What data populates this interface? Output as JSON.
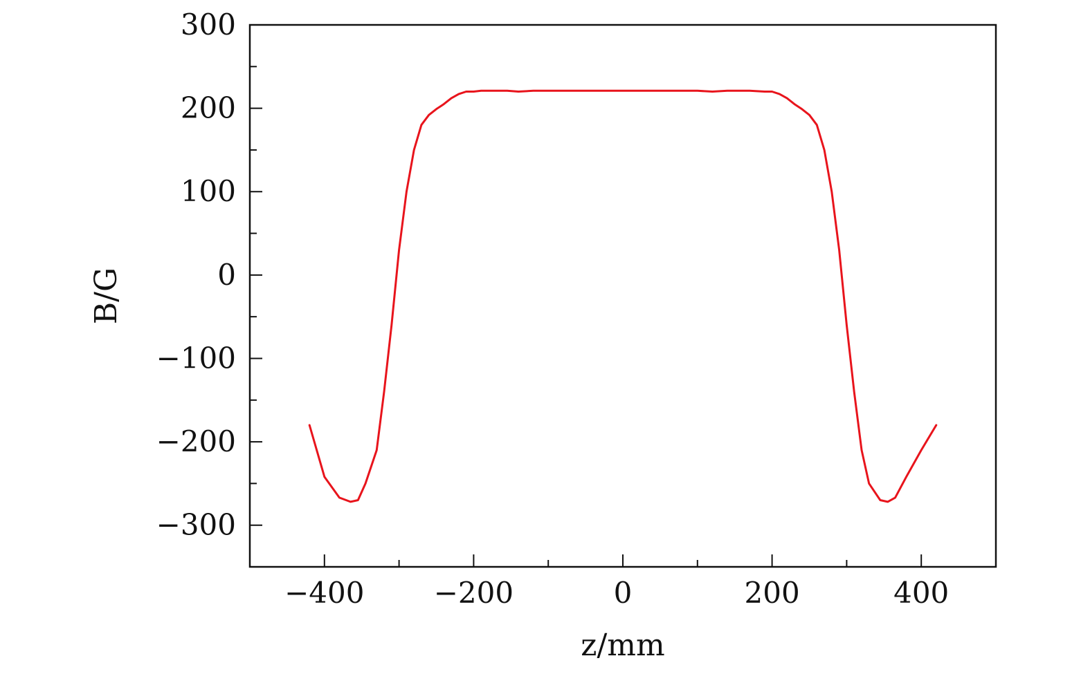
{
  "chart_data": {
    "type": "line",
    "title": "",
    "xlabel": "z/mm",
    "ylabel": "B/G",
    "xlim": [
      -500,
      500
    ],
    "ylim": [
      -350,
      300
    ],
    "x_ticks": [
      -400,
      -200,
      0,
      200,
      400
    ],
    "x_tick_labels": [
      "−400",
      "−200",
      "0",
      "200",
      "400"
    ],
    "x_minor_ticks": [
      -300,
      -100,
      100,
      300
    ],
    "y_ticks": [
      300,
      200,
      100,
      0,
      -100,
      -200,
      -300
    ],
    "y_tick_labels": [
      "300",
      "200",
      "100",
      "0",
      "−100",
      "−200",
      "−300"
    ],
    "y_minor_ticks": [
      250,
      150,
      50,
      -50,
      -150,
      -250
    ],
    "grid": false,
    "line_color": "#e8141c",
    "series": [
      {
        "x": [
          -420,
          -400,
          -380,
          -365,
          -355,
          -345,
          -330,
          -320,
          -310,
          -300,
          -290,
          -280,
          -270,
          -260,
          -250,
          -240,
          -230,
          -220,
          -210,
          -200,
          -190,
          -170,
          -155,
          -140,
          -120,
          -100,
          -50,
          0,
          50,
          100,
          120,
          140,
          155,
          170,
          190,
          200,
          210,
          220,
          230,
          240,
          250,
          260,
          270,
          280,
          290,
          300,
          310,
          320,
          330,
          345,
          355,
          365,
          380,
          400,
          420
        ],
        "y": [
          -180,
          -242,
          -267,
          -272,
          -270,
          -250,
          -210,
          -140,
          -60,
          30,
          100,
          150,
          180,
          192,
          199,
          205,
          212,
          217,
          220,
          220,
          221,
          221,
          221,
          220,
          221,
          221,
          221,
          221,
          221,
          221,
          220,
          221,
          221,
          221,
          220,
          220,
          217,
          212,
          205,
          199,
          192,
          180,
          150,
          100,
          30,
          -60,
          -140,
          -210,
          -250,
          -270,
          -272,
          -267,
          -242,
          -210,
          -180
        ]
      }
    ]
  }
}
